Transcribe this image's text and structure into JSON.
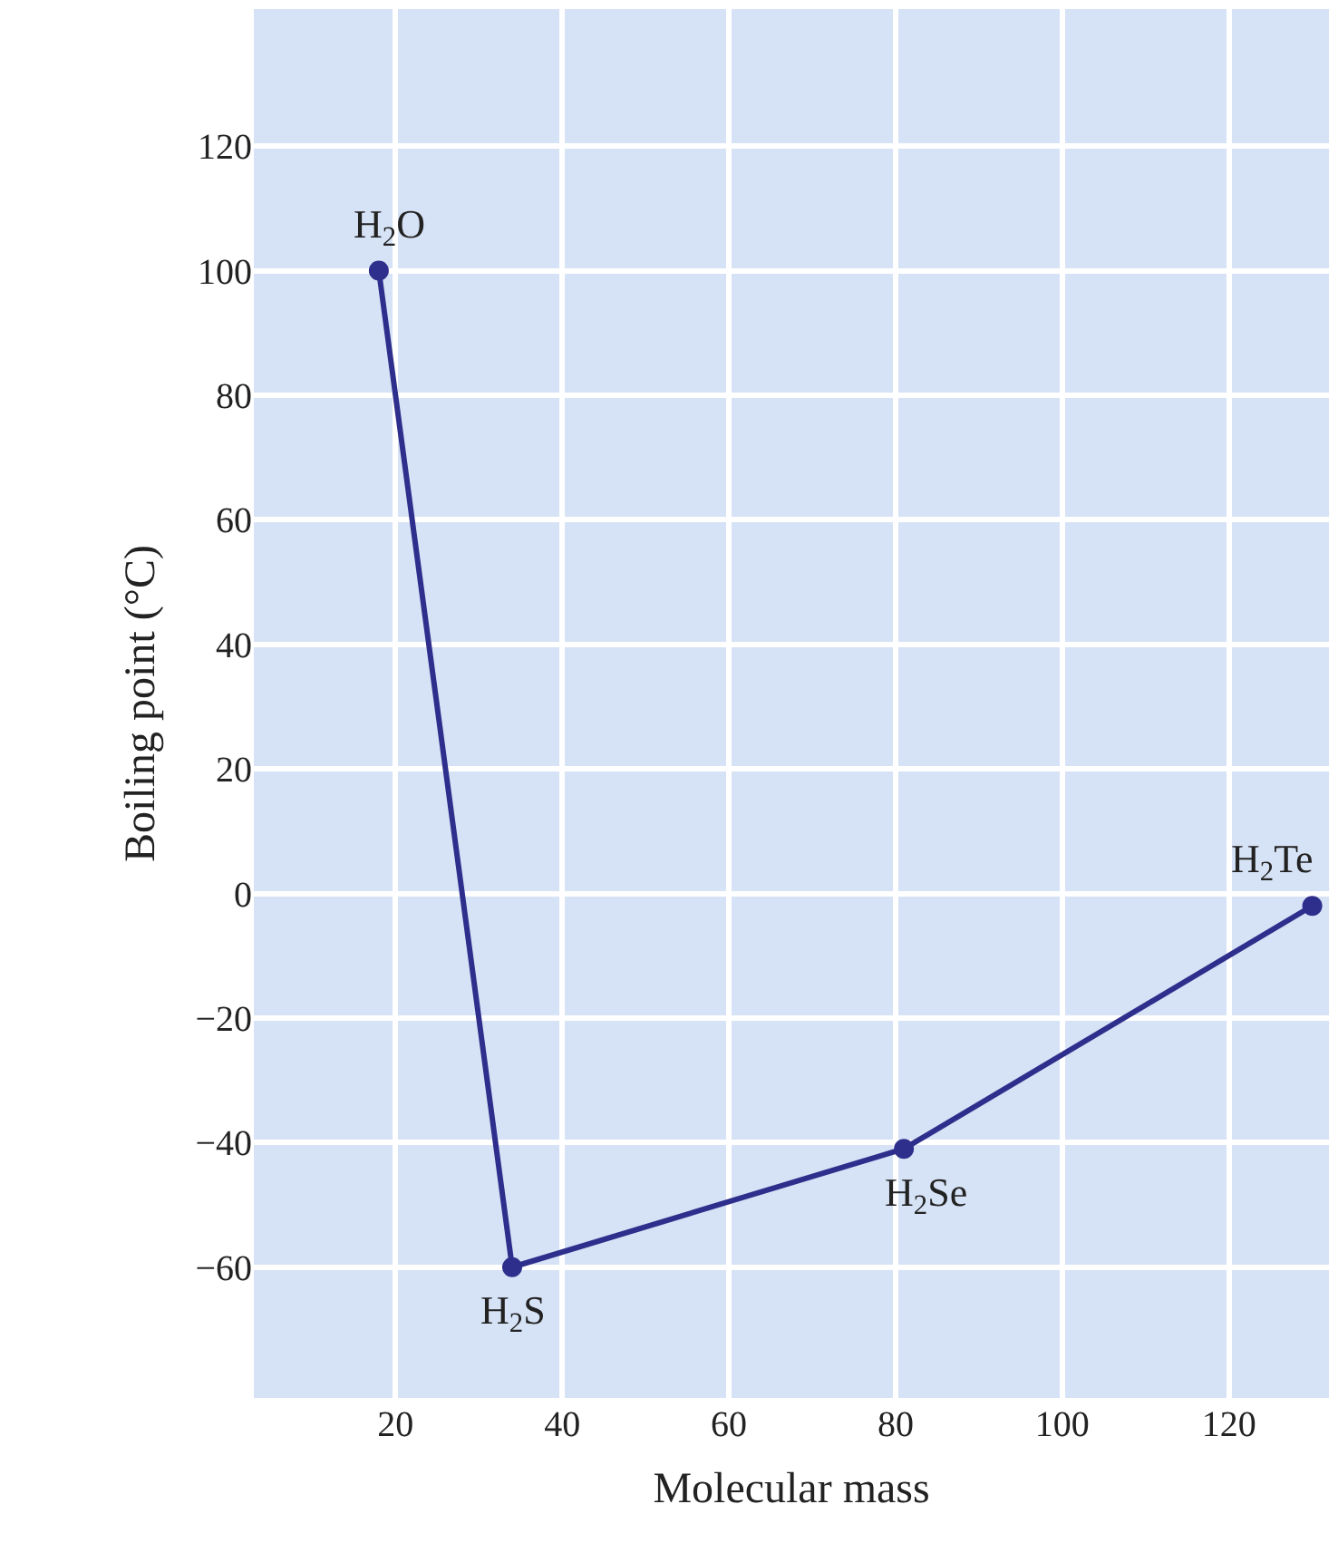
{
  "chart_data": {
    "type": "line",
    "xlabel": "Molecular mass",
    "ylabel": "Boiling point (°C)",
    "x": [
      18,
      34,
      81,
      130
    ],
    "series": [
      {
        "color": "#2e2e8c",
        "values": [
          100,
          -60,
          -41,
          -2
        ]
      }
    ],
    "annotations": [
      {
        "text": "H$_{2}$O",
        "x": 18,
        "y": 100
      },
      {
        "text": "H$_{2}$S",
        "x": 34,
        "y": -60
      },
      {
        "text": "H$_{2}$Se",
        "x": 81,
        "y": -41
      },
      {
        "text": "H$_{2}$Te",
        "x": 130,
        "y": -2
      }
    ],
    "xlim": [
      3,
      132
    ],
    "ylim": [
      -81,
      142
    ],
    "xticks": [
      20,
      40,
      60,
      80,
      100,
      120
    ],
    "yticks": [
      -60,
      -40,
      -20,
      0,
      20,
      40,
      60,
      80,
      100,
      120
    ],
    "grid": true,
    "marker": "circle",
    "line_style": "solid"
  }
}
